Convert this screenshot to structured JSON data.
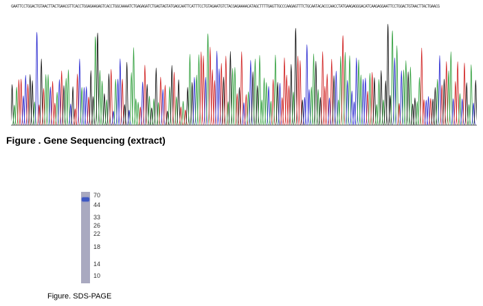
{
  "sequencing": {
    "bases": "GAATTCCTGGACTGTAACTTACTGAACGTTCACCTGGAGAAGAGTCACCTGGCAAAATCTGAGAGATCTGAGTAGTATGAGCAATTCATTTCCTGTAGAATGTCTACGAGAAAACATAGCTTTTGAGTTGCCCAAGAGTTTCTGCAATACACCCAACCTATGAAGAGGGACATCAAGAGGAATTCCTGGACTGTAACTTACTGAACG",
    "caption": "Figure . Gene Sequencing (extract)",
    "base_colors": {
      "A": "#2e9e3a",
      "C": "#2a2ad0",
      "G": "#111111",
      "T": "#d02020"
    }
  },
  "sds_page": {
    "caption": "Figure. SDS-PAGE",
    "marker_labels": [
      "70",
      "44",
      "33",
      "26",
      "22",
      "18",
      "14",
      "10"
    ],
    "lane_color": "#a9a9c0",
    "band_color": "#3f58c2"
  }
}
